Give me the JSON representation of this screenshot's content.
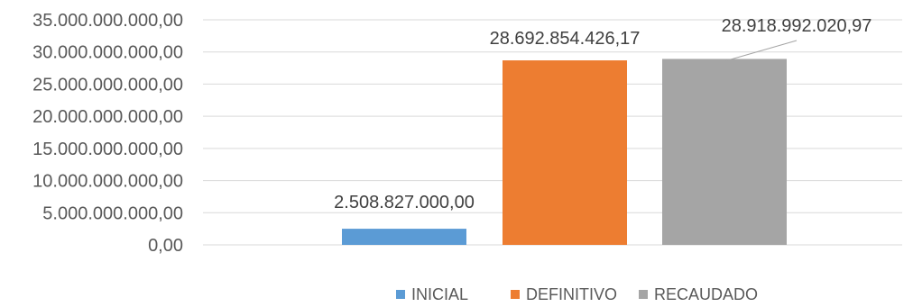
{
  "chart_data": {
    "type": "bar",
    "categories": [
      "INICIAL",
      "DEFINITIVO",
      "RECAUDADO"
    ],
    "values": [
      2508827000.0,
      28692854426.17,
      28918992020.97
    ],
    "data_labels": [
      "2.508.827.000,00",
      "28.692.854.426,17",
      "28.918.992.020,97"
    ],
    "colors": [
      "#5b9bd5",
      "#ed7d31",
      "#a5a5a5"
    ],
    "ylim": [
      0,
      35000000000
    ],
    "y_ticks": [
      0,
      5000000000,
      10000000000,
      15000000000,
      20000000000,
      25000000000,
      30000000000,
      35000000000
    ],
    "y_tick_labels": [
      "0,00",
      "5.000.000.000,00",
      "10.000.000.000,00",
      "15.000.000.000,00",
      "20.000.000.000,00",
      "25.000.000.000,00",
      "30.000.000.000,00",
      "35.000.000.000,00"
    ],
    "grid": true,
    "legend": {
      "position": "bottom",
      "entries": [
        "INICIAL",
        "DEFINITIVO",
        "RECAUDADO"
      ]
    },
    "title": "",
    "xlabel": "",
    "ylabel": ""
  }
}
